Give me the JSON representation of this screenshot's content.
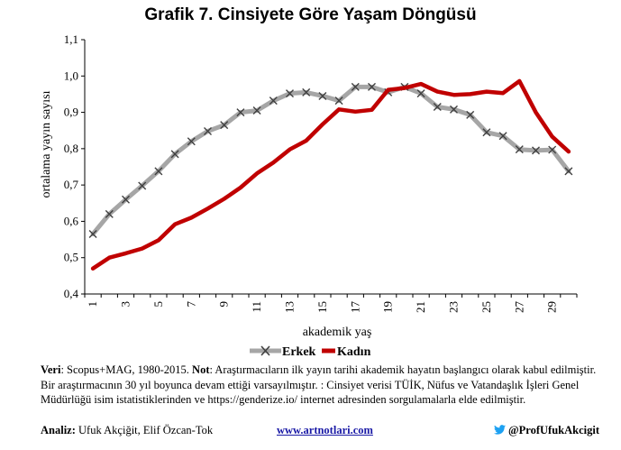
{
  "chart_data": {
    "type": "line",
    "title": "Grafik 7. Cinsiyete Göre Yaşam Döngüsü",
    "xlabel": "akademik yaş",
    "ylabel": "ortalama yayın sayısı",
    "x": [
      1,
      2,
      3,
      4,
      5,
      6,
      7,
      8,
      9,
      10,
      11,
      12,
      13,
      14,
      15,
      16,
      17,
      18,
      19,
      20,
      21,
      22,
      23,
      24,
      25,
      26,
      27,
      28,
      29,
      30
    ],
    "xticks": [
      "1",
      "3",
      "5",
      "7",
      "9",
      "11",
      "13",
      "15",
      "17",
      "19",
      "21",
      "23",
      "25",
      "27",
      "29"
    ],
    "yticks": [
      "0,4",
      "0,5",
      "0,6",
      "0,7",
      "0,8",
      "0,9",
      "1,0",
      "1,1"
    ],
    "ylim": [
      0.4,
      1.1
    ],
    "grid": false,
    "legend_position": "bottom",
    "series": [
      {
        "name": "Erkek",
        "color": "#a6a6a6",
        "marker": "x",
        "values": [
          0.565,
          0.62,
          0.66,
          0.698,
          0.738,
          0.785,
          0.82,
          0.848,
          0.865,
          0.9,
          0.905,
          0.932,
          0.952,
          0.955,
          0.945,
          0.932,
          0.97,
          0.97,
          0.955,
          0.97,
          0.952,
          0.915,
          0.908,
          0.893,
          0.845,
          0.835,
          0.798,
          0.795,
          0.797,
          0.738
        ]
      },
      {
        "name": "Kadın",
        "color": "#c00000",
        "values": [
          0.47,
          0.5,
          0.512,
          0.525,
          0.548,
          0.592,
          0.61,
          0.635,
          0.662,
          0.693,
          0.732,
          0.762,
          0.798,
          0.822,
          0.867,
          0.908,
          0.902,
          0.907,
          0.962,
          0.967,
          0.978,
          0.957,
          0.948,
          0.95,
          0.957,
          0.953,
          0.986,
          0.9,
          0.833,
          0.792
        ]
      }
    ]
  },
  "notes": {
    "source_label": "Veri",
    "source_text": ": Scopus+MAG, 1980-2015. ",
    "note_label": "Not",
    "note_text": ": Araştırmacıların ilk yayın tarihi akademik hayatın başlangıcı olarak kabul edilmiştir. Bir araştırmacının 30 yıl boyunca devam ettiği varsayılmıştır. : Cinsiyet verisi TÜİK, Nüfus ve Vatandaşlık İşleri Genel Müdürlüğü isim istatistiklerinden ve https://genderize.io/ internet adresinden sorgulamalarla elde edilmiştir."
  },
  "footer": {
    "analysis_label": "Analiz:",
    "analysis_text": " Ufuk Akçiğit, Elif Özcan-Tok",
    "website": "www.artnotlari.com",
    "twitter": "@ProfUfukAkcigit"
  },
  "colors": {
    "twitter": "#1da1f2",
    "link": "#1a1aa6"
  }
}
